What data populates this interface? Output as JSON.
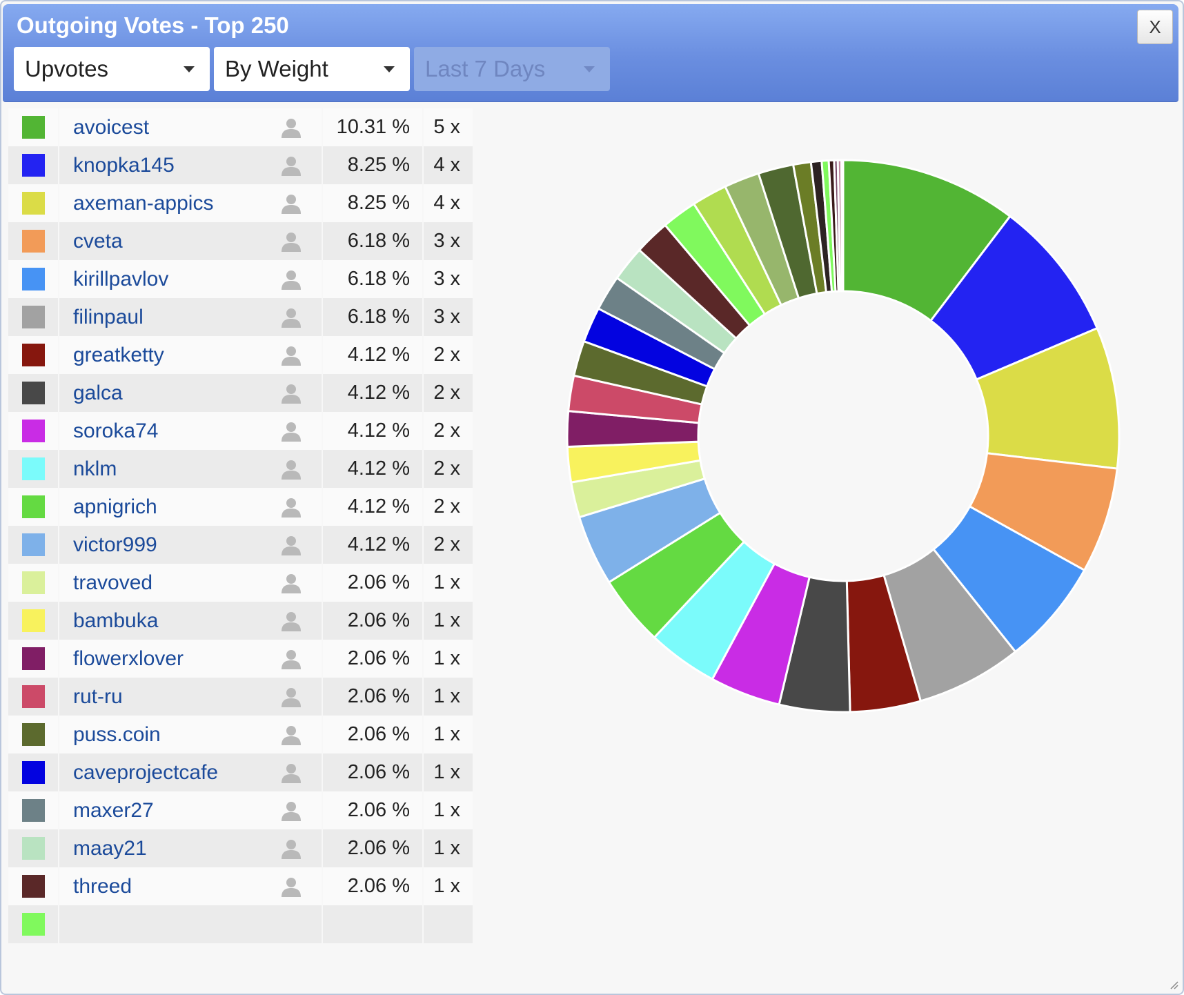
{
  "header": {
    "title": "Outgoing Votes - Top 250",
    "close_label": "X"
  },
  "filters": {
    "type": "Upvotes",
    "sort": "By Weight",
    "period": "Last 7 Days"
  },
  "voters": [
    {
      "name": "avoicest",
      "percent": "10.31 %",
      "count": "5 x",
      "color": "#52b534"
    },
    {
      "name": "knopka145",
      "percent": "8.25 %",
      "count": "4 x",
      "color": "#2323f2"
    },
    {
      "name": "axeman-appics",
      "percent": "8.25 %",
      "count": "4 x",
      "color": "#dbdc47"
    },
    {
      "name": "cveta",
      "percent": "6.18 %",
      "count": "3 x",
      "color": "#f29b58"
    },
    {
      "name": "kirillpavlov",
      "percent": "6.18 %",
      "count": "3 x",
      "color": "#4793f4"
    },
    {
      "name": "filinpaul",
      "percent": "6.18 %",
      "count": "3 x",
      "color": "#a2a2a2"
    },
    {
      "name": "greatketty",
      "percent": "4.12 %",
      "count": "2 x",
      "color": "#86170e"
    },
    {
      "name": "galca",
      "percent": "4.12 %",
      "count": "2 x",
      "color": "#484848"
    },
    {
      "name": "soroka74",
      "percent": "4.12 %",
      "count": "2 x",
      "color": "#c92ce5"
    },
    {
      "name": "nklm",
      "percent": "4.12 %",
      "count": "2 x",
      "color": "#7bfbfb"
    },
    {
      "name": "apnigrich",
      "percent": "4.12 %",
      "count": "2 x",
      "color": "#64da42"
    },
    {
      "name": "victor999",
      "percent": "4.12 %",
      "count": "2 x",
      "color": "#7eb1e9"
    },
    {
      "name": "travoved",
      "percent": "2.06 %",
      "count": "1 x",
      "color": "#daf09b"
    },
    {
      "name": "bambuka",
      "percent": "2.06 %",
      "count": "1 x",
      "color": "#f8f25d"
    },
    {
      "name": "flowerxlover",
      "percent": "2.06 %",
      "count": "1 x",
      "color": "#801e65"
    },
    {
      "name": "rut-ru",
      "percent": "2.06 %",
      "count": "1 x",
      "color": "#cc4a68"
    },
    {
      "name": "puss.coin",
      "percent": "2.06 %",
      "count": "1 x",
      "color": "#5c6a2e"
    },
    {
      "name": "caveprojectcafe",
      "percent": "2.06 %",
      "count": "1 x",
      "color": "#0303e0"
    },
    {
      "name": "maxer27",
      "percent": "2.06 %",
      "count": "1 x",
      "color": "#6d8187"
    },
    {
      "name": "maay21",
      "percent": "2.06 %",
      "count": "1 x",
      "color": "#b9e3c1"
    },
    {
      "name": "threed",
      "percent": "2.06 %",
      "count": "1 x",
      "color": "#5a2828"
    }
  ],
  "chart_data": {
    "type": "pie",
    "donut": true,
    "start_angle_deg": 0,
    "direction": "clockwise",
    "slices": [
      {
        "value": 10.31,
        "color": "#52b534"
      },
      {
        "value": 8.25,
        "color": "#2323f2"
      },
      {
        "value": 8.25,
        "color": "#dbdc47"
      },
      {
        "value": 6.18,
        "color": "#f29b58"
      },
      {
        "value": 6.18,
        "color": "#4793f4"
      },
      {
        "value": 6.18,
        "color": "#a2a2a2"
      },
      {
        "value": 4.12,
        "color": "#86170e"
      },
      {
        "value": 4.12,
        "color": "#484848"
      },
      {
        "value": 4.12,
        "color": "#c92ce5"
      },
      {
        "value": 4.12,
        "color": "#7bfbfb"
      },
      {
        "value": 4.12,
        "color": "#64da42"
      },
      {
        "value": 4.12,
        "color": "#7eb1e9"
      },
      {
        "value": 2.06,
        "color": "#daf09b"
      },
      {
        "value": 2.06,
        "color": "#f8f25d"
      },
      {
        "value": 2.06,
        "color": "#801e65"
      },
      {
        "value": 2.06,
        "color": "#cc4a68"
      },
      {
        "value": 2.06,
        "color": "#5c6a2e"
      },
      {
        "value": 2.06,
        "color": "#0303e0"
      },
      {
        "value": 2.06,
        "color": "#6d8187"
      },
      {
        "value": 2.06,
        "color": "#b9e3c1"
      },
      {
        "value": 2.06,
        "color": "#5a2828"
      },
      {
        "value": 2.06,
        "color": "#80f95d"
      },
      {
        "value": 2.06,
        "color": "#b0dc50"
      },
      {
        "value": 2.06,
        "color": "#97b66c"
      },
      {
        "value": 2.06,
        "color": "#4f6830"
      },
      {
        "value": 1.03,
        "color": "#6b7d26"
      },
      {
        "value": 0.62,
        "color": "#2d2323"
      },
      {
        "value": 0.41,
        "color": "#80f95d"
      },
      {
        "value": 0.31,
        "color": "#3a1a1a"
      },
      {
        "value": 0.21,
        "color": "#7a4a6a"
      },
      {
        "value": 0.21,
        "color": "#c28aa0"
      },
      {
        "value": 0.1,
        "color": "#3030a0"
      }
    ]
  }
}
